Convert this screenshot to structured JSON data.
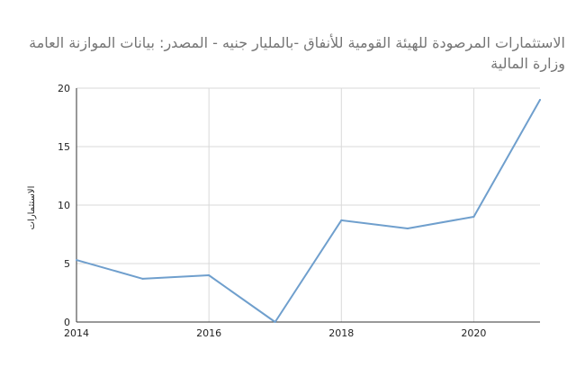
{
  "chart_data": {
    "type": "line",
    "title": "الاستثمارات المرصودة للهيئة القومية للأنفاق -بالمليار جنيه - المصدر: بيانات الموازنة العامة وزارة المالية",
    "xlabel": "",
    "ylabel": "الاستثمارات",
    "x": [
      2014,
      2015,
      2016,
      2017,
      2018,
      2019,
      2020,
      2021
    ],
    "series": [
      {
        "values": [
          5.3,
          3.7,
          4.0,
          0.0,
          8.7,
          8.0,
          9.0,
          19.0
        ]
      }
    ],
    "xlim": [
      2014,
      2021
    ],
    "ylim": [
      0,
      20
    ],
    "x_ticks": [
      "2014",
      "2016",
      "2018",
      "2020"
    ],
    "y_ticks": [
      "0",
      "5",
      "10",
      "15",
      "20"
    ],
    "grid": true,
    "legend": "none",
    "line_color": "#6f9fcd",
    "grid_color": "#d9d9d9",
    "axis_color": "#333333"
  }
}
